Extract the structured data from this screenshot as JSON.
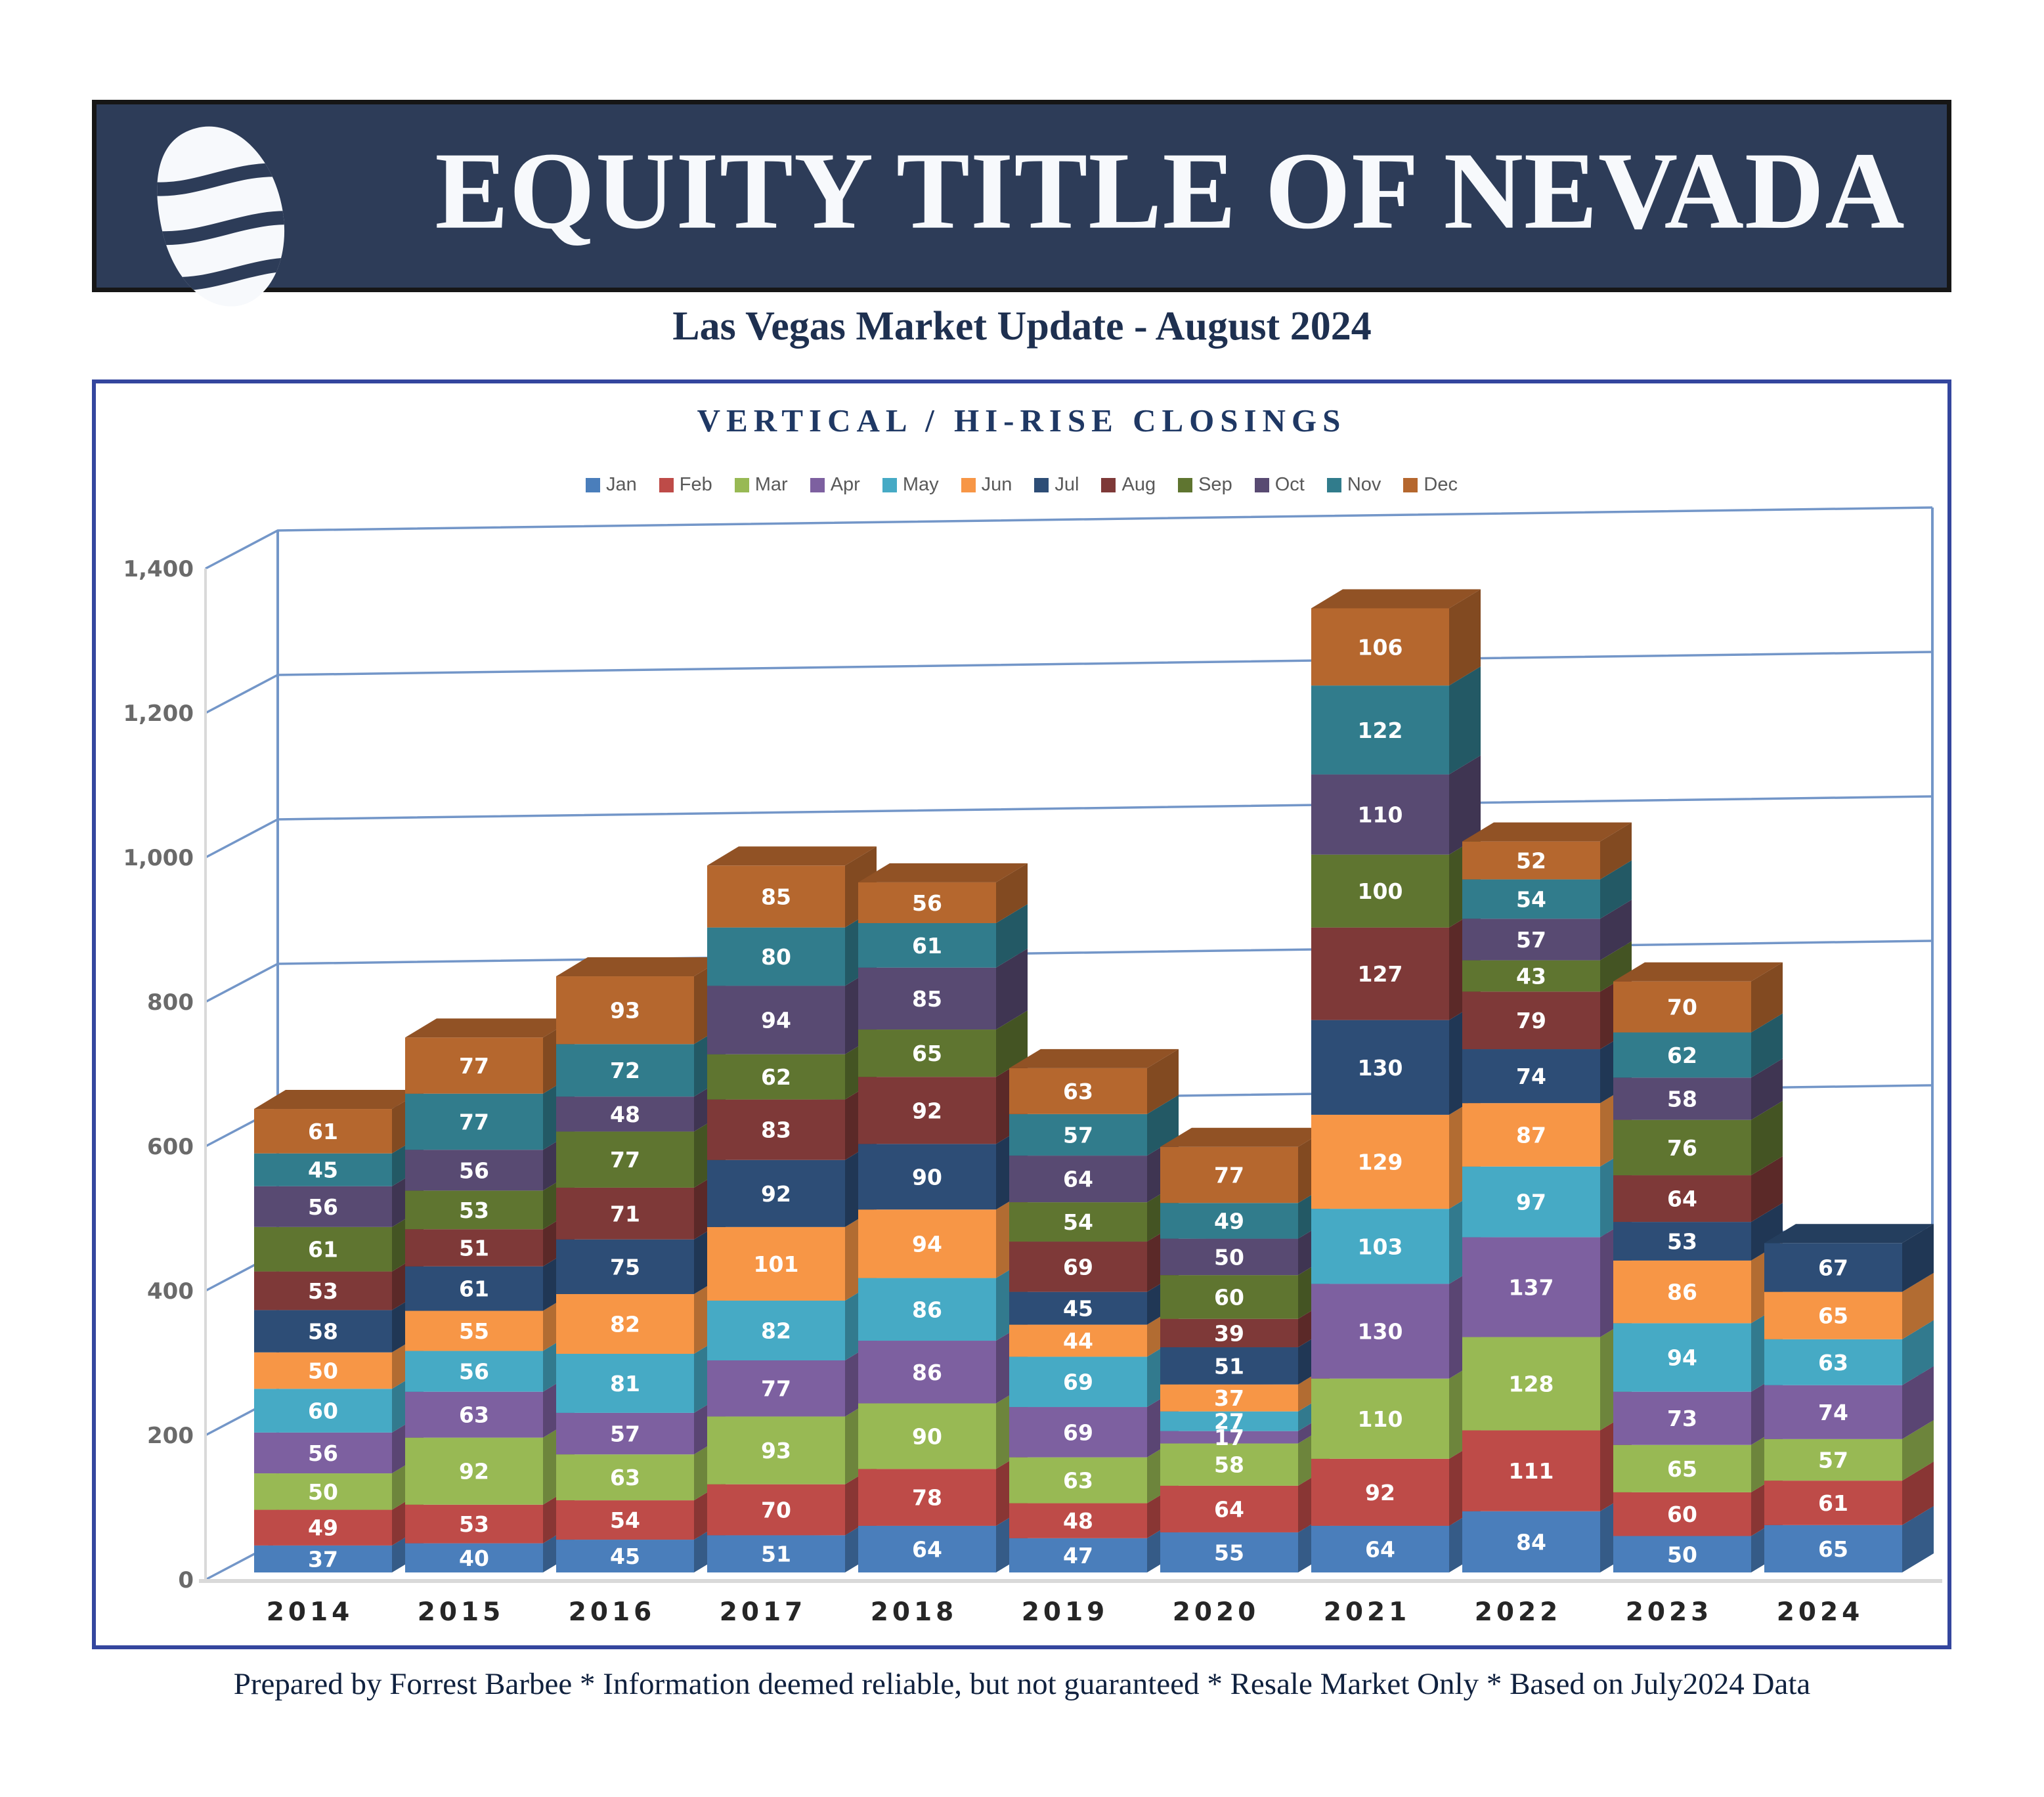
{
  "header": {
    "brand": "EQUITY TITLE OF NEVADA",
    "subtitle": "Las Vegas Market Update - August 2024"
  },
  "footer": {
    "text": "Prepared by Forrest Barbee * Information deemed reliable, but not guaranteed * Resale Market Only * Based on July2024 Data"
  },
  "colors": {
    "banner_bg": "#2d3c58",
    "banner_border": "#161616",
    "chart_border": "#34469e",
    "gridline": "#7396c8",
    "axis_floor_line": "#d9d9d9",
    "title_text": "#1f3864",
    "legend_text": "#595959",
    "tick_text": "#6a6a6a"
  },
  "chart_data": {
    "type": "bar",
    "stacked": true,
    "style": "3d-column",
    "title": "VERTICAL / HI-RISE CLOSINGS",
    "xlabel": "",
    "ylabel": "",
    "ylim": [
      0,
      1400
    ],
    "grid": true,
    "legend_position": "top",
    "categories": [
      "2014",
      "2015",
      "2016",
      "2017",
      "2018",
      "2019",
      "2020",
      "2021",
      "2022",
      "2023",
      "2024"
    ],
    "yticks": [
      {
        "label": "0",
        "value": 0
      },
      {
        "label": "200",
        "value": 200
      },
      {
        "label": "400",
        "value": 400
      },
      {
        "label": "600",
        "value": 600
      },
      {
        "label": "800",
        "value": 800
      },
      {
        "label": "1,000",
        "value": 1000
      },
      {
        "label": "1,200",
        "value": 1200
      },
      {
        "label": "1,400",
        "value": 1400
      }
    ],
    "series": [
      {
        "name": "Jan",
        "color": "#4a7ebb",
        "values": [
          37,
          40,
          45,
          51,
          64,
          47,
          55,
          64,
          84,
          50,
          65
        ]
      },
      {
        "name": "Feb",
        "color": "#be4b48",
        "values": [
          49,
          53,
          54,
          70,
          78,
          48,
          64,
          92,
          111,
          60,
          61
        ]
      },
      {
        "name": "Mar",
        "color": "#98b954",
        "values": [
          50,
          92,
          63,
          93,
          90,
          63,
          58,
          110,
          128,
          65,
          57
        ]
      },
      {
        "name": "Apr",
        "color": "#7d60a0",
        "values": [
          56,
          63,
          57,
          77,
          86,
          69,
          17,
          130,
          137,
          73,
          74
        ]
      },
      {
        "name": "May",
        "color": "#46aac5",
        "values": [
          60,
          56,
          81,
          82,
          86,
          69,
          27,
          103,
          97,
          94,
          63
        ]
      },
      {
        "name": "Jun",
        "color": "#f79646",
        "values": [
          50,
          55,
          82,
          101,
          94,
          44,
          37,
          129,
          87,
          86,
          65
        ]
      },
      {
        "name": "Jul",
        "color": "#2d4d76",
        "values": [
          58,
          61,
          75,
          92,
          90,
          45,
          51,
          130,
          74,
          53,
          67
        ]
      },
      {
        "name": "Aug",
        "color": "#7e3938",
        "values": [
          53,
          51,
          71,
          83,
          92,
          69,
          39,
          127,
          79,
          64,
          null
        ]
      },
      {
        "name": "Sep",
        "color": "#5f7530",
        "values": [
          61,
          53,
          77,
          62,
          65,
          54,
          60,
          100,
          43,
          76,
          null
        ]
      },
      {
        "name": "Oct",
        "color": "#584a72",
        "values": [
          56,
          56,
          48,
          94,
          85,
          64,
          50,
          110,
          57,
          58,
          null
        ]
      },
      {
        "name": "Nov",
        "color": "#317c8c",
        "values": [
          45,
          77,
          72,
          80,
          61,
          57,
          49,
          122,
          54,
          62,
          null
        ]
      },
      {
        "name": "Dec",
        "color": "#b5672e",
        "values": [
          61,
          77,
          93,
          85,
          56,
          63,
          77,
          106,
          52,
          70,
          null
        ]
      }
    ]
  }
}
